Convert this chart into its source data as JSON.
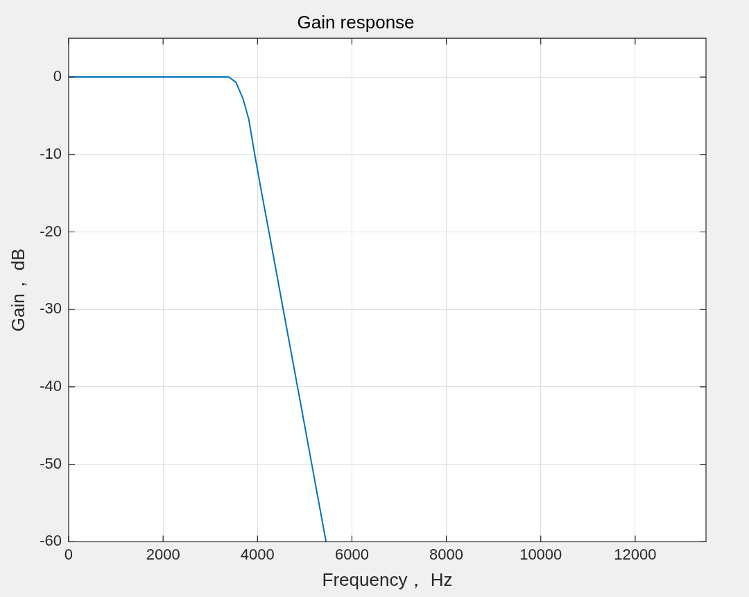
{
  "chart_data": {
    "type": "line",
    "title": "Gain response",
    "xlabel": "Frequency， Hz",
    "ylabel": "Gain， dB",
    "x": [
      0,
      1000,
      2000,
      3000,
      3393,
      3545,
      3693,
      3817,
      3941,
      4089,
      4243,
      4545,
      4848,
      5150,
      5452
    ],
    "series": [
      {
        "color": "#0072bd",
        "values": [
          0,
          0,
          0,
          0,
          0,
          -0.7,
          -2.8,
          -5.5,
          -10,
          -15,
          -20,
          -30,
          -40,
          -50,
          -60
        ]
      }
    ],
    "xlim": [
      0,
      13500
    ],
    "xticks": [
      0,
      2000,
      4000,
      6000,
      8000,
      10000,
      12000
    ],
    "ylim": [
      -60,
      5
    ],
    "yticks": [
      -60,
      -50,
      -40,
      -30,
      -20,
      -10,
      0
    ],
    "grid": true,
    "legend": false,
    "marker": "none",
    "line_style": "solid"
  }
}
